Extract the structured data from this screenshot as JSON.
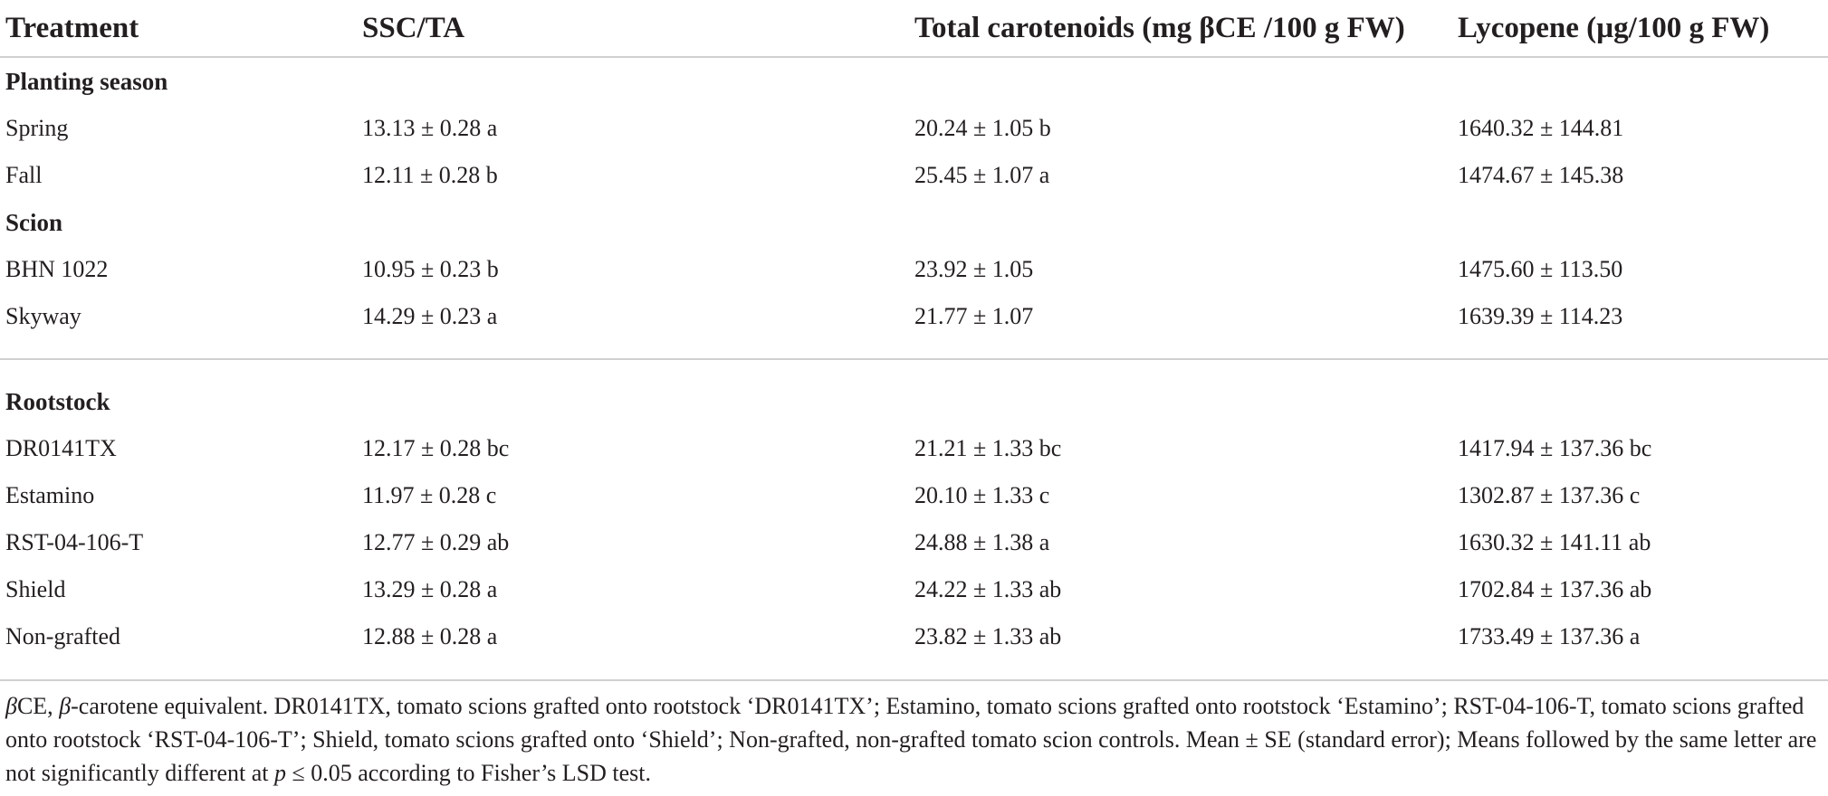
{
  "table": {
    "headers": [
      "Treatment",
      "SSC/TA",
      "Total carotenoids (mg βCE /100 g FW)",
      "Lycopene (µg/100 g FW)"
    ],
    "groups": [
      {
        "name": "Planting season",
        "rows": [
          [
            "Spring",
            "13.13 ± 0.28 a",
            "20.24 ± 1.05 b",
            "1640.32 ± 144.81"
          ],
          [
            "Fall",
            "12.11 ± 0.28 b",
            "25.45 ± 1.07 a",
            "1474.67 ± 145.38"
          ]
        ]
      },
      {
        "name": "Scion",
        "rows": [
          [
            "BHN 1022",
            "10.95 ± 0.23 b",
            "23.92 ± 1.05",
            "1475.60 ± 113.50"
          ],
          [
            "Skyway",
            "14.29 ± 0.23 a",
            "21.77 ± 1.07",
            "1639.39 ± 114.23"
          ]
        ]
      },
      {
        "name": "Rootstock",
        "rows": [
          [
            "DR0141TX",
            "12.17 ± 0.28 bc",
            "21.21 ± 1.33 bc",
            "1417.94 ± 137.36 bc"
          ],
          [
            "Estamino",
            "11.97 ± 0.28 c",
            "20.10 ± 1.33 c",
            "1302.87 ± 137.36 c"
          ],
          [
            "RST-04-106-T",
            "12.77 ± 0.29 ab",
            "24.88 ± 1.38 a",
            "1630.32 ± 141.11 ab"
          ],
          [
            "Shield",
            "13.29 ± 0.28 a",
            "24.22 ± 1.33 ab",
            "1702.84 ± 137.36 ab"
          ],
          [
            "Non-grafted",
            "12.88 ± 0.28 a",
            "23.82 ± 1.33 ab",
            "1733.49 ± 137.36 a"
          ]
        ]
      }
    ]
  },
  "footnote": {
    "symbol_beta": "β",
    "part1": "CE, ",
    "part2": "-carotene equivalent. DR0141TX, tomato scions grafted onto rootstock ‘DR0141TX’; Estamino, tomato scions grafted onto rootstock ‘Estamino’; RST-04-106-T, tomato scions grafted onto rootstock ‘RST-04-106-T’; Shield, tomato scions grafted onto ‘Shield’; Non-grafted, non-grafted tomato scion controls. Mean ± SE (standard error); Means followed by the same letter are not significantly different at ",
    "symbol_p": "p",
    "part3": " ≤ 0.05 according to Fisher’s LSD test."
  }
}
